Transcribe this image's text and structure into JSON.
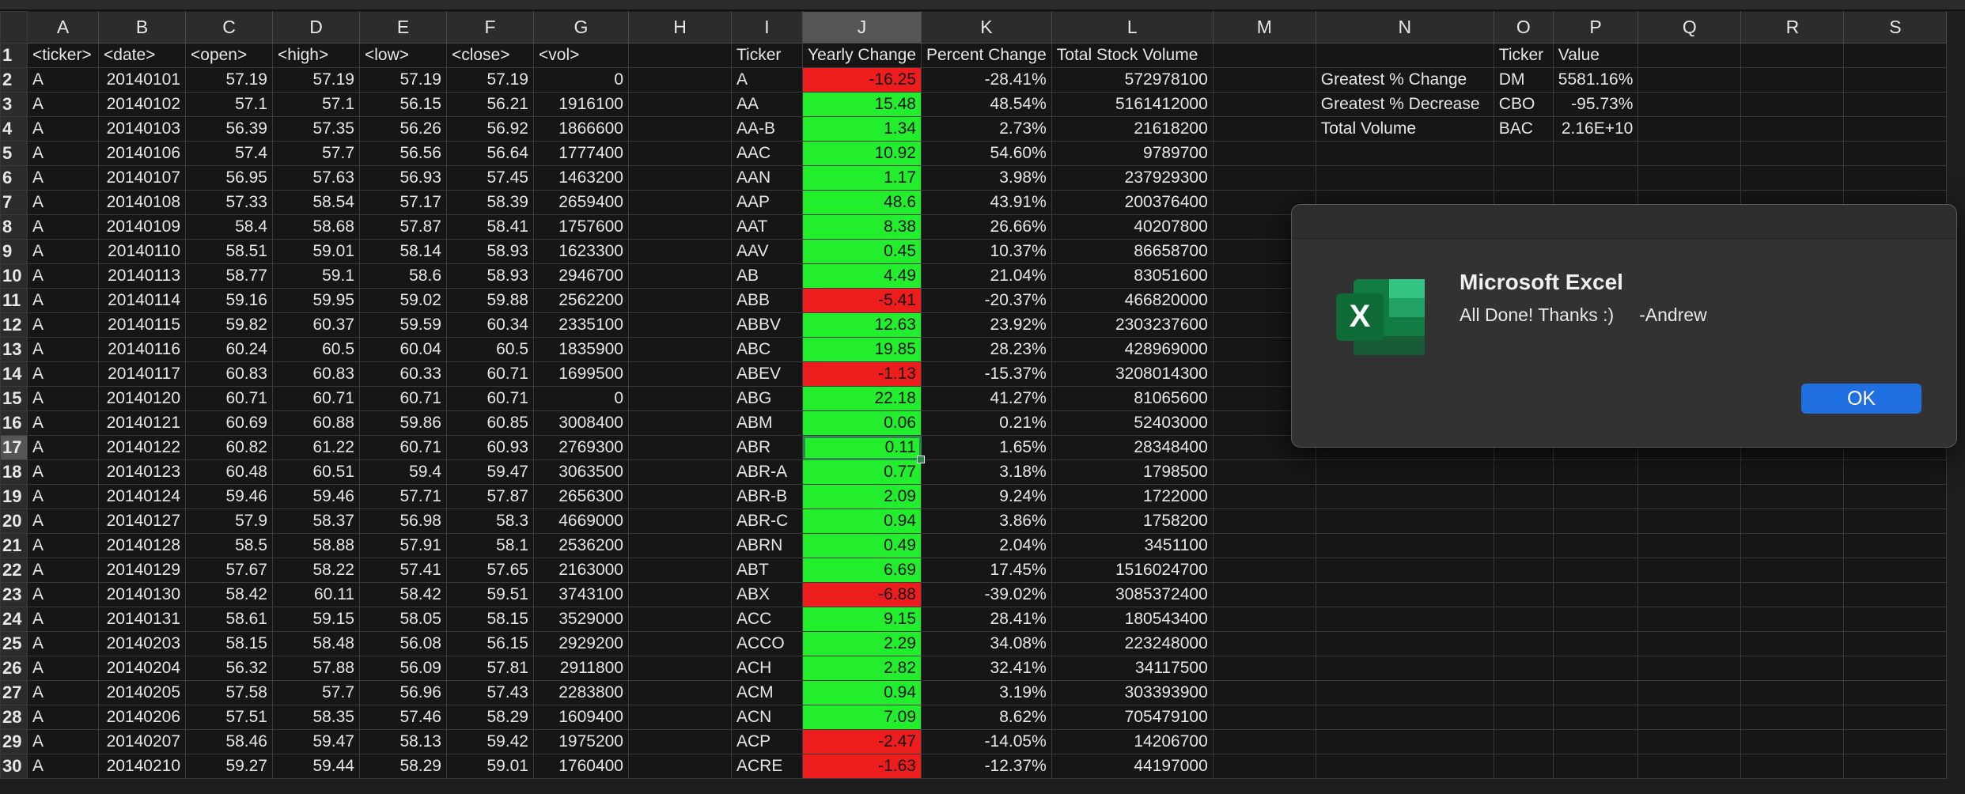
{
  "columns": [
    "A",
    "B",
    "C",
    "D",
    "E",
    "F",
    "G",
    "H",
    "I",
    "J",
    "K",
    "L",
    "M",
    "N",
    "O",
    "P",
    "Q",
    "R",
    "S"
  ],
  "selected_column": "J",
  "selected_row": 17,
  "rows": [
    {
      "num": "1",
      "cells": [
        "<ticker>",
        "<date>",
        "<open>",
        "<high>",
        "<low>",
        "<close>",
        "<vol>",
        "",
        "Ticker",
        "Yearly Change",
        "Percent Change",
        "Total Stock Volume",
        "",
        "",
        "Ticker",
        "Value",
        "",
        "",
        ""
      ]
    },
    {
      "num": "2",
      "cells": [
        "A",
        "20140101",
        "57.19",
        "57.19",
        "57.19",
        "57.19",
        "0",
        "",
        "A",
        "-16.25",
        "-28.41%",
        "572978100",
        "",
        "Greatest % Change",
        "DM",
        "5581.16%",
        "",
        "",
        ""
      ]
    },
    {
      "num": "3",
      "cells": [
        "A",
        "20140102",
        "57.1",
        "57.1",
        "56.15",
        "56.21",
        "1916100",
        "",
        "AA",
        "15.48",
        "48.54%",
        "5161412000",
        "",
        "Greatest % Decrease",
        "CBO",
        "-95.73%",
        "",
        "",
        ""
      ]
    },
    {
      "num": "4",
      "cells": [
        "A",
        "20140103",
        "56.39",
        "57.35",
        "56.26",
        "56.92",
        "1866600",
        "",
        "AA-B",
        "1.34",
        "2.73%",
        "21618200",
        "",
        "Total Volume",
        "BAC",
        "2.16E+10",
        "",
        "",
        ""
      ]
    },
    {
      "num": "5",
      "cells": [
        "A",
        "20140106",
        "57.4",
        "57.7",
        "56.56",
        "56.64",
        "1777400",
        "",
        "AAC",
        "10.92",
        "54.60%",
        "9789700",
        "",
        "",
        "",
        "",
        "",
        "",
        ""
      ]
    },
    {
      "num": "6",
      "cells": [
        "A",
        "20140107",
        "56.95",
        "57.63",
        "56.93",
        "57.45",
        "1463200",
        "",
        "AAN",
        "1.17",
        "3.98%",
        "237929300",
        "",
        "",
        "",
        "",
        "",
        "",
        ""
      ]
    },
    {
      "num": "7",
      "cells": [
        "A",
        "20140108",
        "57.33",
        "58.54",
        "57.17",
        "58.39",
        "2659400",
        "",
        "AAP",
        "48.6",
        "43.91%",
        "200376400",
        "",
        "",
        "",
        "",
        "",
        "",
        ""
      ]
    },
    {
      "num": "8",
      "cells": [
        "A",
        "20140109",
        "58.4",
        "58.68",
        "57.87",
        "58.41",
        "1757600",
        "",
        "AAT",
        "8.38",
        "26.66%",
        "40207800",
        "",
        "",
        "",
        "",
        "",
        "",
        ""
      ]
    },
    {
      "num": "9",
      "cells": [
        "A",
        "20140110",
        "58.51",
        "59.01",
        "58.14",
        "58.93",
        "1623300",
        "",
        "AAV",
        "0.45",
        "10.37%",
        "86658700",
        "",
        "",
        "",
        "",
        "",
        "",
        ""
      ]
    },
    {
      "num": "10",
      "cells": [
        "A",
        "20140113",
        "58.77",
        "59.1",
        "58.6",
        "58.93",
        "2946700",
        "",
        "AB",
        "4.49",
        "21.04%",
        "83051600",
        "",
        "",
        "",
        "",
        "",
        "",
        ""
      ]
    },
    {
      "num": "11",
      "cells": [
        "A",
        "20140114",
        "59.16",
        "59.95",
        "59.02",
        "59.88",
        "2562200",
        "",
        "ABB",
        "-5.41",
        "-20.37%",
        "466820000",
        "",
        "",
        "",
        "",
        "",
        "",
        ""
      ]
    },
    {
      "num": "12",
      "cells": [
        "A",
        "20140115",
        "59.82",
        "60.37",
        "59.59",
        "60.34",
        "2335100",
        "",
        "ABBV",
        "12.63",
        "23.92%",
        "2303237600",
        "",
        "",
        "",
        "",
        "",
        "",
        ""
      ]
    },
    {
      "num": "13",
      "cells": [
        "A",
        "20140116",
        "60.24",
        "60.5",
        "60.04",
        "60.5",
        "1835900",
        "",
        "ABC",
        "19.85",
        "28.23%",
        "428969000",
        "",
        "",
        "",
        "",
        "",
        "",
        ""
      ]
    },
    {
      "num": "14",
      "cells": [
        "A",
        "20140117",
        "60.83",
        "60.83",
        "60.33",
        "60.71",
        "1699500",
        "",
        "ABEV",
        "-1.13",
        "-15.37%",
        "3208014300",
        "",
        "",
        "",
        "",
        "",
        "",
        ""
      ]
    },
    {
      "num": "15",
      "cells": [
        "A",
        "20140120",
        "60.71",
        "60.71",
        "60.71",
        "60.71",
        "0",
        "",
        "ABG",
        "22.18",
        "41.27%",
        "81065600",
        "",
        "",
        "",
        "",
        "",
        "",
        ""
      ]
    },
    {
      "num": "16",
      "cells": [
        "A",
        "20140121",
        "60.69",
        "60.88",
        "59.86",
        "60.85",
        "3008400",
        "",
        "ABM",
        "0.06",
        "0.21%",
        "52403000",
        "",
        "",
        "",
        "",
        "",
        "",
        ""
      ]
    },
    {
      "num": "17",
      "cells": [
        "A",
        "20140122",
        "60.82",
        "61.22",
        "60.71",
        "60.93",
        "2769300",
        "",
        "ABR",
        "0.11",
        "1.65%",
        "28348400",
        "",
        "",
        "",
        "",
        "",
        "",
        ""
      ]
    },
    {
      "num": "18",
      "cells": [
        "A",
        "20140123",
        "60.48",
        "60.51",
        "59.4",
        "59.47",
        "3063500",
        "",
        "ABR-A",
        "0.77",
        "3.18%",
        "1798500",
        "",
        "",
        "",
        "",
        "",
        "",
        ""
      ]
    },
    {
      "num": "19",
      "cells": [
        "A",
        "20140124",
        "59.46",
        "59.46",
        "57.71",
        "57.87",
        "2656300",
        "",
        "ABR-B",
        "2.09",
        "9.24%",
        "1722000",
        "",
        "",
        "",
        "",
        "",
        "",
        ""
      ]
    },
    {
      "num": "20",
      "cells": [
        "A",
        "20140127",
        "57.9",
        "58.37",
        "56.98",
        "58.3",
        "4669000",
        "",
        "ABR-C",
        "0.94",
        "3.86%",
        "1758200",
        "",
        "",
        "",
        "",
        "",
        "",
        ""
      ]
    },
    {
      "num": "21",
      "cells": [
        "A",
        "20140128",
        "58.5",
        "58.88",
        "57.91",
        "58.1",
        "2536200",
        "",
        "ABRN",
        "0.49",
        "2.04%",
        "3451100",
        "",
        "",
        "",
        "",
        "",
        "",
        ""
      ]
    },
    {
      "num": "22",
      "cells": [
        "A",
        "20140129",
        "57.67",
        "58.22",
        "57.41",
        "57.65",
        "2163000",
        "",
        "ABT",
        "6.69",
        "17.45%",
        "1516024700",
        "",
        "",
        "",
        "",
        "",
        "",
        ""
      ]
    },
    {
      "num": "23",
      "cells": [
        "A",
        "20140130",
        "58.42",
        "60.11",
        "58.42",
        "59.51",
        "3743100",
        "",
        "ABX",
        "-6.88",
        "-39.02%",
        "3085372400",
        "",
        "",
        "",
        "",
        "",
        "",
        ""
      ]
    },
    {
      "num": "24",
      "cells": [
        "A",
        "20140131",
        "58.61",
        "59.15",
        "58.05",
        "58.15",
        "3529000",
        "",
        "ACC",
        "9.15",
        "28.41%",
        "180543400",
        "",
        "",
        "",
        "",
        "",
        "",
        ""
      ]
    },
    {
      "num": "25",
      "cells": [
        "A",
        "20140203",
        "58.15",
        "58.48",
        "56.08",
        "56.15",
        "2929200",
        "",
        "ACCO",
        "2.29",
        "34.08%",
        "223248000",
        "",
        "",
        "",
        "",
        "",
        "",
        ""
      ]
    },
    {
      "num": "26",
      "cells": [
        "A",
        "20140204",
        "56.32",
        "57.88",
        "56.09",
        "57.81",
        "2911800",
        "",
        "ACH",
        "2.82",
        "32.41%",
        "34117500",
        "",
        "",
        "",
        "",
        "",
        "",
        ""
      ]
    },
    {
      "num": "27",
      "cells": [
        "A",
        "20140205",
        "57.58",
        "57.7",
        "56.96",
        "57.43",
        "2283800",
        "",
        "ACM",
        "0.94",
        "3.19%",
        "303393900",
        "",
        "",
        "",
        "",
        "",
        "",
        ""
      ]
    },
    {
      "num": "28",
      "cells": [
        "A",
        "20140206",
        "57.51",
        "58.35",
        "57.46",
        "58.29",
        "1609400",
        "",
        "ACN",
        "7.09",
        "8.62%",
        "705479100",
        "",
        "",
        "",
        "",
        "",
        "",
        ""
      ]
    },
    {
      "num": "29",
      "cells": [
        "A",
        "20140207",
        "58.46",
        "59.47",
        "58.13",
        "59.42",
        "1975200",
        "",
        "ACP",
        "-2.47",
        "-14.05%",
        "14206700",
        "",
        "",
        "",
        "",
        "",
        "",
        ""
      ]
    },
    {
      "num": "30",
      "cells": [
        "A",
        "20140210",
        "59.27",
        "59.44",
        "58.29",
        "59.01",
        "1760400",
        "",
        "ACRE",
        "-1.63",
        "-12.37%",
        "44197000",
        "",
        "",
        "",
        "",
        "",
        "",
        ""
      ]
    }
  ],
  "colors": {
    "positive": "#22ee2d",
    "negative": "#ee1d1d",
    "ok_button": "#1f6fe0"
  },
  "dialog": {
    "title": "Microsoft Excel",
    "message": "All Done! Thanks :)     -Andrew",
    "ok_label": "OK",
    "icon": "excel-icon"
  }
}
